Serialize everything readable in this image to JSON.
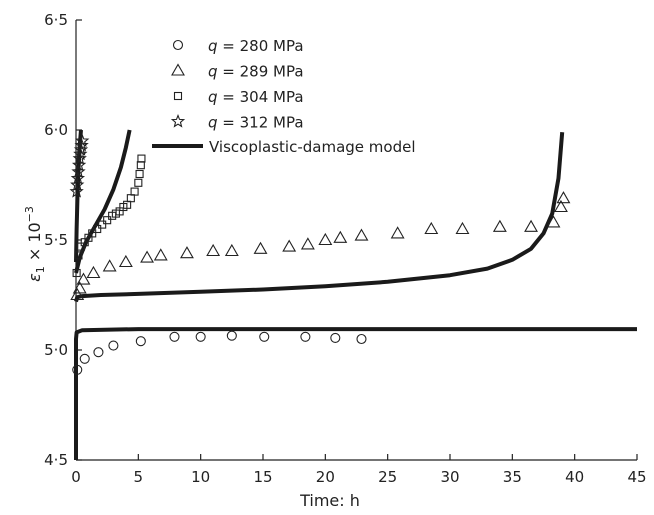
{
  "chart_data": {
    "type": "scatter",
    "xlabel": "Time: h",
    "ylabel_symbol": "ε",
    "ylabel_subscript": "1",
    "ylabel_rest": " × 10",
    "ylabel_exponent": "−3",
    "xlim": [
      0,
      45
    ],
    "ylim": [
      4.5,
      6.5
    ],
    "x_ticks": [
      0,
      5,
      10,
      15,
      20,
      25,
      30,
      35,
      40,
      45
    ],
    "y_ticks": [
      4.5,
      5.0,
      5.5,
      6.0,
      6.5
    ],
    "y_tick_labels": [
      "4·5",
      "5·0",
      "5·5",
      "6·0",
      "6·5"
    ],
    "grid": false,
    "legend_position": "top-left",
    "series": [
      {
        "q_label": "q",
        "value_label": " = 280 MPa",
        "marker": "circle",
        "x": [
          0.1,
          0.7,
          1.8,
          3.0,
          5.2,
          7.9,
          10.0,
          12.5,
          15.1,
          18.4,
          20.8,
          22.9
        ],
        "y": [
          4.91,
          4.96,
          4.99,
          5.02,
          5.04,
          5.06,
          5.06,
          5.065,
          5.06,
          5.06,
          5.055,
          5.05
        ]
      },
      {
        "q_label": "q",
        "value_label": " = 289 MPa",
        "marker": "triangle",
        "x": [
          0.1,
          0.3,
          0.6,
          1.4,
          2.7,
          4.0,
          5.7,
          6.8,
          8.9,
          11.0,
          12.5,
          14.8,
          17.1,
          18.6,
          20.0,
          21.2,
          22.9,
          25.8,
          28.5,
          31.0,
          34.0,
          36.5,
          38.3,
          38.9,
          39.1
        ],
        "y": [
          5.25,
          5.28,
          5.32,
          5.35,
          5.38,
          5.4,
          5.42,
          5.43,
          5.44,
          5.45,
          5.45,
          5.46,
          5.47,
          5.48,
          5.5,
          5.51,
          5.52,
          5.53,
          5.55,
          5.55,
          5.56,
          5.56,
          5.58,
          5.65,
          5.69
        ]
      },
      {
        "q_label": "q",
        "value_label": " = 304 MPa",
        "marker": "square",
        "x": [
          0.05,
          0.2,
          0.4,
          0.7,
          1.0,
          1.3,
          1.7,
          2.1,
          2.5,
          2.9,
          3.2,
          3.5,
          3.8,
          4.1,
          4.4,
          4.7,
          5.0,
          5.1,
          5.2,
          5.25
        ],
        "y": [
          5.35,
          5.43,
          5.47,
          5.49,
          5.51,
          5.53,
          5.55,
          5.57,
          5.59,
          5.61,
          5.62,
          5.63,
          5.65,
          5.66,
          5.69,
          5.72,
          5.76,
          5.8,
          5.84,
          5.87
        ]
      },
      {
        "q_label": "q",
        "value_label": " = 312 MPa",
        "marker": "star",
        "x": [
          0.05,
          0.1,
          0.15,
          0.2,
          0.25,
          0.3,
          0.35,
          0.4,
          0.45,
          0.5
        ],
        "y": [
          5.72,
          5.75,
          5.78,
          5.81,
          5.84,
          5.87,
          5.89,
          5.91,
          5.93,
          5.95
        ]
      }
    ],
    "model": {
      "name": "Viscoplastic-damage model",
      "curves": [
        {
          "x": [
            0.0,
            0.0,
            0.0,
            0.05,
            0.5,
            5,
            10,
            20,
            30,
            40,
            45
          ],
          "y": [
            4.5,
            4.9,
            5.05,
            5.08,
            5.09,
            5.095,
            5.095,
            5.095,
            5.095,
            5.095,
            5.095
          ]
        },
        {
          "x": [
            0.0,
            0.1,
            0.5,
            2,
            5,
            10,
            15,
            20,
            25,
            30,
            33,
            35,
            36.5,
            37.5,
            38.2,
            38.7,
            39.0
          ],
          "y": [
            5.22,
            5.24,
            5.245,
            5.25,
            5.255,
            5.265,
            5.275,
            5.29,
            5.31,
            5.34,
            5.37,
            5.41,
            5.46,
            5.53,
            5.62,
            5.78,
            5.99
          ]
        },
        {
          "x": [
            0.0,
            0.3,
            0.8,
            1.5,
            2.3,
            3.0,
            3.6,
            4.0,
            4.3
          ],
          "y": [
            5.35,
            5.42,
            5.49,
            5.56,
            5.64,
            5.73,
            5.83,
            5.92,
            6.0
          ]
        },
        {
          "x": [
            0.0,
            0.05,
            0.12,
            0.2,
            0.3,
            0.4
          ],
          "y": [
            5.4,
            5.55,
            5.7,
            5.82,
            5.93,
            6.0
          ]
        }
      ]
    }
  }
}
